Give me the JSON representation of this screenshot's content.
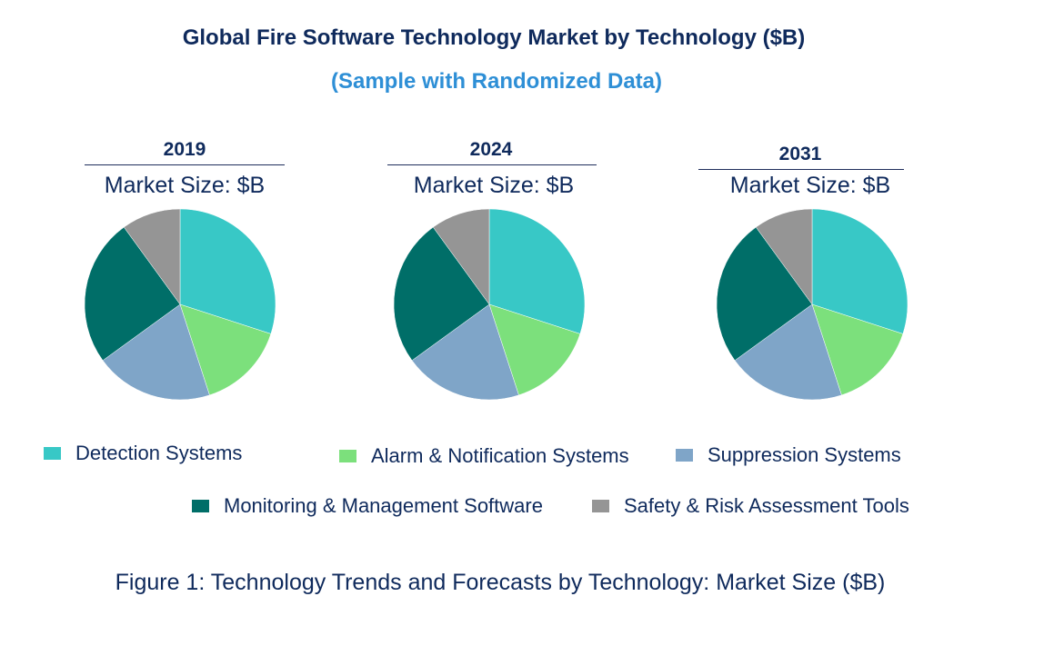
{
  "title": "Global Fire Software Technology Market by Technology ($B)",
  "subtitle": "(Sample with Randomized Data)",
  "caption": "Figure 1: Technology Trends and Forecasts by Technology: Market Size ($B)",
  "colors": {
    "detection": "#38c8c6",
    "alarm": "#7ce07c",
    "suppression": "#7fa5c8",
    "monitoring": "#006e68",
    "safety": "#959595"
  },
  "legend": [
    {
      "label": "Detection Systems",
      "color": "#38c8c6"
    },
    {
      "label": "Alarm & Notification Systems",
      "color": "#7ce07c"
    },
    {
      "label": "Suppression Systems",
      "color": "#7fa5c8"
    },
    {
      "label": "Monitoring & Management Software",
      "color": "#006e68"
    },
    {
      "label": "Safety & Risk Assessment Tools",
      "color": "#959595"
    }
  ],
  "chart_data": [
    {
      "type": "pie",
      "title": "2019",
      "subtitle": "Market Size: $B",
      "categories": [
        "Detection Systems",
        "Alarm & Notification Systems",
        "Suppression Systems",
        "Monitoring & Management Software",
        "Safety & Risk Assessment Tools"
      ],
      "values": [
        30,
        15,
        20,
        25,
        10
      ]
    },
    {
      "type": "pie",
      "title": "2024",
      "subtitle": "Market Size: $B",
      "categories": [
        "Detection Systems",
        "Alarm & Notification Systems",
        "Suppression Systems",
        "Monitoring & Management Software",
        "Safety & Risk Assessment Tools"
      ],
      "values": [
        30,
        15,
        20,
        25,
        10
      ]
    },
    {
      "type": "pie",
      "title": "2031",
      "subtitle": "Market Size: $B",
      "categories": [
        "Detection Systems",
        "Alarm & Notification Systems",
        "Suppression Systems",
        "Monitoring & Management Software",
        "Safety & Risk Assessment Tools"
      ],
      "values": [
        30,
        15,
        20,
        25,
        10
      ]
    }
  ]
}
